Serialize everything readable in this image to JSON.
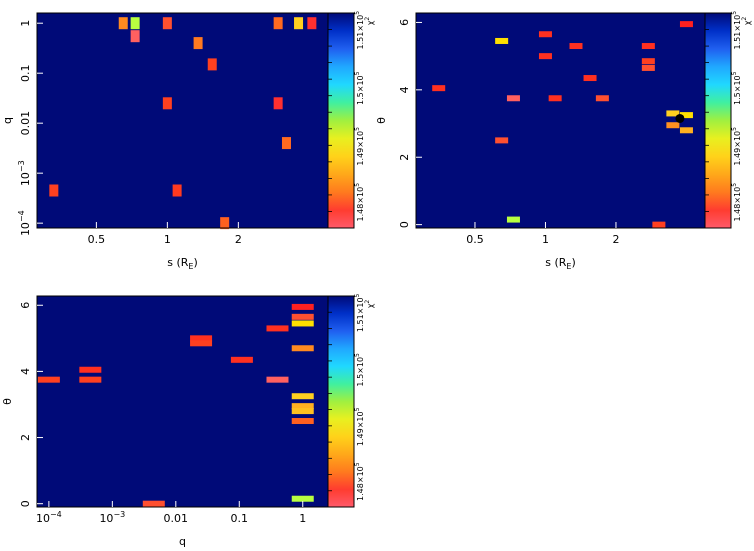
{
  "chart_data": [
    {
      "type": "heatmap",
      "id": "q-vs-s",
      "xlabel_main": "s (R",
      "xlabel_sub": "E",
      "xlabel_close": ")",
      "ylabel": "q",
      "xscale": "log",
      "yscale": "log",
      "xlim": [
        0.28,
        4.8
      ],
      "ylim": [
        8e-05,
        1.6
      ],
      "xticks": [
        {
          "v": 0.5,
          "label": "0.5"
        },
        {
          "v": 1,
          "label": "1"
        },
        {
          "v": 2,
          "label": "2"
        }
      ],
      "yticks": [
        {
          "v": 1,
          "label": "1"
        },
        {
          "v": 0.1,
          "label": "0.1"
        },
        {
          "v": 0.01,
          "label": "0.01"
        },
        {
          "v": 0.001,
          "label": "10",
          "exp": "−3"
        },
        {
          "v": 0.0001,
          "label": "10",
          "exp": "−4"
        }
      ],
      "background": "#000a78",
      "colorbar": {
        "ticks": [
          "1.51×10",
          "1.5×10",
          "1.49×10",
          "1.48×10"
        ],
        "exp": "5",
        "label": "χ",
        "label_exp": "2"
      },
      "cells": [
        {
          "x": 0.65,
          "y": 1,
          "color": "#ff8a20"
        },
        {
          "x": 0.73,
          "y": 1,
          "color": "#b8ff40"
        },
        {
          "x": 0.73,
          "y": 0.55,
          "color": "#ff6060"
        },
        {
          "x": 1.0,
          "y": 1,
          "color": "#ff5030"
        },
        {
          "x": 1.35,
          "y": 0.4,
          "color": "#ff7a20"
        },
        {
          "x": 1.55,
          "y": 0.15,
          "color": "#ff4020"
        },
        {
          "x": 2.95,
          "y": 1,
          "color": "#ff6a20"
        },
        {
          "x": 3.6,
          "y": 1,
          "color": "#ffd020"
        },
        {
          "x": 4.1,
          "y": 1,
          "color": "#ff3030"
        },
        {
          "x": 1.0,
          "y": 0.025,
          "color": "#ff4020"
        },
        {
          "x": 2.95,
          "y": 0.025,
          "color": "#ff3030"
        },
        {
          "x": 3.2,
          "y": 0.004,
          "color": "#ff6a20"
        },
        {
          "x": 0.33,
          "y": 0.00045,
          "color": "#ff4020"
        },
        {
          "x": 1.1,
          "y": 0.00045,
          "color": "#ff3a20"
        },
        {
          "x": 1.75,
          "y": 0.0001,
          "color": "#ff6020"
        }
      ]
    },
    {
      "type": "heatmap",
      "id": "theta-vs-s",
      "xlabel_main": "s (R",
      "xlabel_sub": "E",
      "xlabel_close": ")",
      "ylabel": "θ",
      "xscale": "log",
      "yscale": "linear",
      "xlim": [
        0.28,
        4.8
      ],
      "ylim": [
        -0.1,
        6.28
      ],
      "xticks": [
        {
          "v": 0.5,
          "label": "0.5"
        },
        {
          "v": 1,
          "label": "1"
        },
        {
          "v": 2,
          "label": "2"
        }
      ],
      "yticks": [
        {
          "v": 0,
          "label": "0"
        },
        {
          "v": 2,
          "label": "2"
        },
        {
          "v": 4,
          "label": "4"
        },
        {
          "v": 6,
          "label": "6"
        }
      ],
      "background": "#000a78",
      "colorbar": {
        "ticks": [
          "1.51×10",
          "1.5×10",
          "1.49×10",
          "1.48×10"
        ],
        "exp": "5",
        "label": "χ",
        "label_exp": "2"
      },
      "cells": [
        {
          "x": 0.35,
          "y": 4.05,
          "color": "#ff3020"
        },
        {
          "x": 0.65,
          "y": 5.45,
          "color": "#ffe000"
        },
        {
          "x": 0.73,
          "y": 3.75,
          "color": "#ff6060"
        },
        {
          "x": 0.65,
          "y": 2.5,
          "color": "#ff5030"
        },
        {
          "x": 0.73,
          "y": 0.15,
          "color": "#b8ff40"
        },
        {
          "x": 1.0,
          "y": 5.65,
          "color": "#ff3020"
        },
        {
          "x": 1.0,
          "y": 5.0,
          "color": "#ff3020"
        },
        {
          "x": 1.1,
          "y": 3.75,
          "color": "#ff3020"
        },
        {
          "x": 1.35,
          "y": 5.3,
          "color": "#ff3020"
        },
        {
          "x": 1.55,
          "y": 4.35,
          "color": "#ff3020"
        },
        {
          "x": 1.75,
          "y": 3.75,
          "color": "#ff5030"
        },
        {
          "x": 2.75,
          "y": 5.3,
          "color": "#ff3020"
        },
        {
          "x": 2.75,
          "y": 4.85,
          "color": "#ff4020"
        },
        {
          "x": 2.75,
          "y": 4.65,
          "color": "#ff5030"
        },
        {
          "x": 3.05,
          "y": 0.0,
          "color": "#ff4020"
        },
        {
          "x": 3.5,
          "y": 3.3,
          "color": "#ffd020"
        },
        {
          "x": 3.5,
          "y": 2.95,
          "color": "#ff9020"
        },
        {
          "x": 4.0,
          "y": 2.8,
          "color": "#ffb020"
        },
        {
          "x": 4.0,
          "y": 3.25,
          "color": "#ffe000"
        },
        {
          "x": 4.0,
          "y": 5.95,
          "color": "#ff2020"
        }
      ],
      "marker": {
        "x": 3.75,
        "y": 3.15
      }
    },
    {
      "type": "heatmap",
      "id": "theta-vs-q",
      "xlabel_main": "q",
      "ylabel": "θ",
      "xscale": "log",
      "yscale": "linear",
      "xlim": [
        6.5e-05,
        2.5
      ],
      "ylim": [
        -0.1,
        6.28
      ],
      "xticks": [
        {
          "v": 0.0001,
          "label": "10",
          "exp": "−4"
        },
        {
          "v": 0.001,
          "label": "10",
          "exp": "−3"
        },
        {
          "v": 0.01,
          "label": "0.01"
        },
        {
          "v": 0.1,
          "label": "0.1"
        },
        {
          "v": 1,
          "label": "1"
        }
      ],
      "yticks": [
        {
          "v": 0,
          "label": "0"
        },
        {
          "v": 2,
          "label": "2"
        },
        {
          "v": 4,
          "label": "4"
        },
        {
          "v": 6,
          "label": "6"
        }
      ],
      "background": "#000a78",
      "colorbar": {
        "ticks": [
          "1.51×10",
          "1.5×10",
          "1.49×10",
          "1.48×10"
        ],
        "exp": "5",
        "label": "χ",
        "label_exp": "2"
      },
      "cells": [
        {
          "x": 0.0001,
          "y": 3.75,
          "color": "#ff4020"
        },
        {
          "x": 0.00045,
          "y": 4.05,
          "color": "#ff3020"
        },
        {
          "x": 0.00045,
          "y": 3.75,
          "color": "#ff4020"
        },
        {
          "x": 0.0045,
          "y": 0.0,
          "color": "#ff5030"
        },
        {
          "x": 0.025,
          "y": 5.0,
          "color": "#ff3020"
        },
        {
          "x": 0.025,
          "y": 4.85,
          "color": "#ff4020"
        },
        {
          "x": 0.11,
          "y": 4.35,
          "color": "#ff3020"
        },
        {
          "x": 0.4,
          "y": 5.3,
          "color": "#ff3020"
        },
        {
          "x": 0.4,
          "y": 3.75,
          "color": "#ff6060"
        },
        {
          "x": 1.0,
          "y": 5.95,
          "color": "#ff2020"
        },
        {
          "x": 1.0,
          "y": 5.65,
          "color": "#ff5030"
        },
        {
          "x": 1.0,
          "y": 5.45,
          "color": "#ffe000"
        },
        {
          "x": 1.0,
          "y": 4.7,
          "color": "#ff8a20"
        },
        {
          "x": 1.0,
          "y": 3.25,
          "color": "#ffd020"
        },
        {
          "x": 1.0,
          "y": 2.95,
          "color": "#ffb020"
        },
        {
          "x": 1.0,
          "y": 2.8,
          "color": "#ffc020"
        },
        {
          "x": 1.0,
          "y": 2.5,
          "color": "#ff6020"
        },
        {
          "x": 1.0,
          "y": 0.15,
          "color": "#b8ff40"
        }
      ]
    }
  ]
}
